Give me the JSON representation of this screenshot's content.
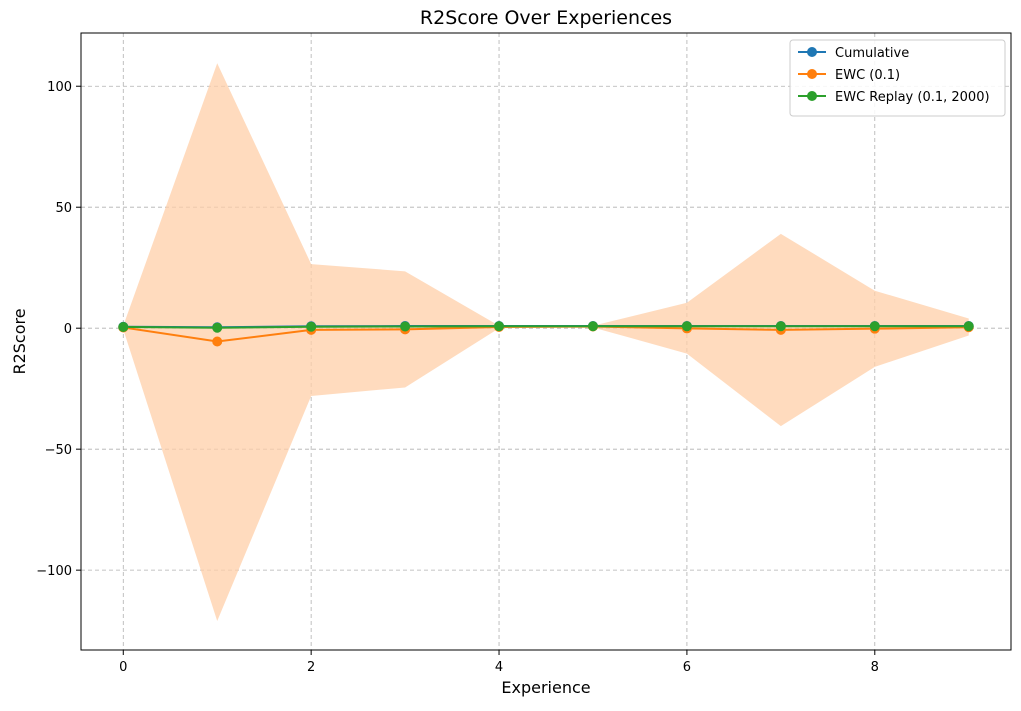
{
  "chart_data": {
    "type": "line",
    "title": "R2Score Over Experiences",
    "xlabel": "Experience",
    "ylabel": "R2Score",
    "xlim": [
      -0.45,
      9.45
    ],
    "ylim": [
      -133,
      122
    ],
    "xticks": [
      0,
      2,
      4,
      6,
      8
    ],
    "xtick_labels": [
      "0",
      "2",
      "4",
      "6",
      "8"
    ],
    "yticks": [
      -100,
      -50,
      0,
      50,
      100
    ],
    "ytick_labels": [
      "−100",
      "−50",
      "0",
      "50",
      "100"
    ],
    "grid": true,
    "legend_position": "top-right",
    "x": [
      0,
      1,
      2,
      3,
      4,
      5,
      6,
      7,
      8,
      9
    ],
    "series": [
      {
        "name": "Cumulative",
        "color": "#1f77b4",
        "values": [
          0.6,
          0.4,
          0.8,
          0.9,
          0.9,
          0.9,
          0.9,
          0.9,
          0.9,
          0.9
        ]
      },
      {
        "name": "EWC (0.1)",
        "color": "#ff7f0e",
        "values": [
          0.3,
          -5.5,
          -0.7,
          -0.5,
          0.5,
          0.7,
          -0.1,
          -0.7,
          -0.2,
          0.4
        ],
        "band_upper": [
          1.0,
          109.5,
          26.5,
          23.5,
          1.0,
          1.0,
          10.5,
          39.0,
          15.5,
          4.0
        ],
        "band_lower": [
          -0.5,
          -121.0,
          -28.0,
          -24.5,
          0.0,
          0.3,
          -10.5,
          -40.5,
          -16.0,
          -3.0
        ],
        "band_color": "#ffcfa8"
      },
      {
        "name": "EWC Replay (0.1, 2000)",
        "color": "#2ca02c",
        "values": [
          0.5,
          0.2,
          0.6,
          0.7,
          0.8,
          0.8,
          0.8,
          0.8,
          0.8,
          0.8
        ]
      }
    ]
  }
}
